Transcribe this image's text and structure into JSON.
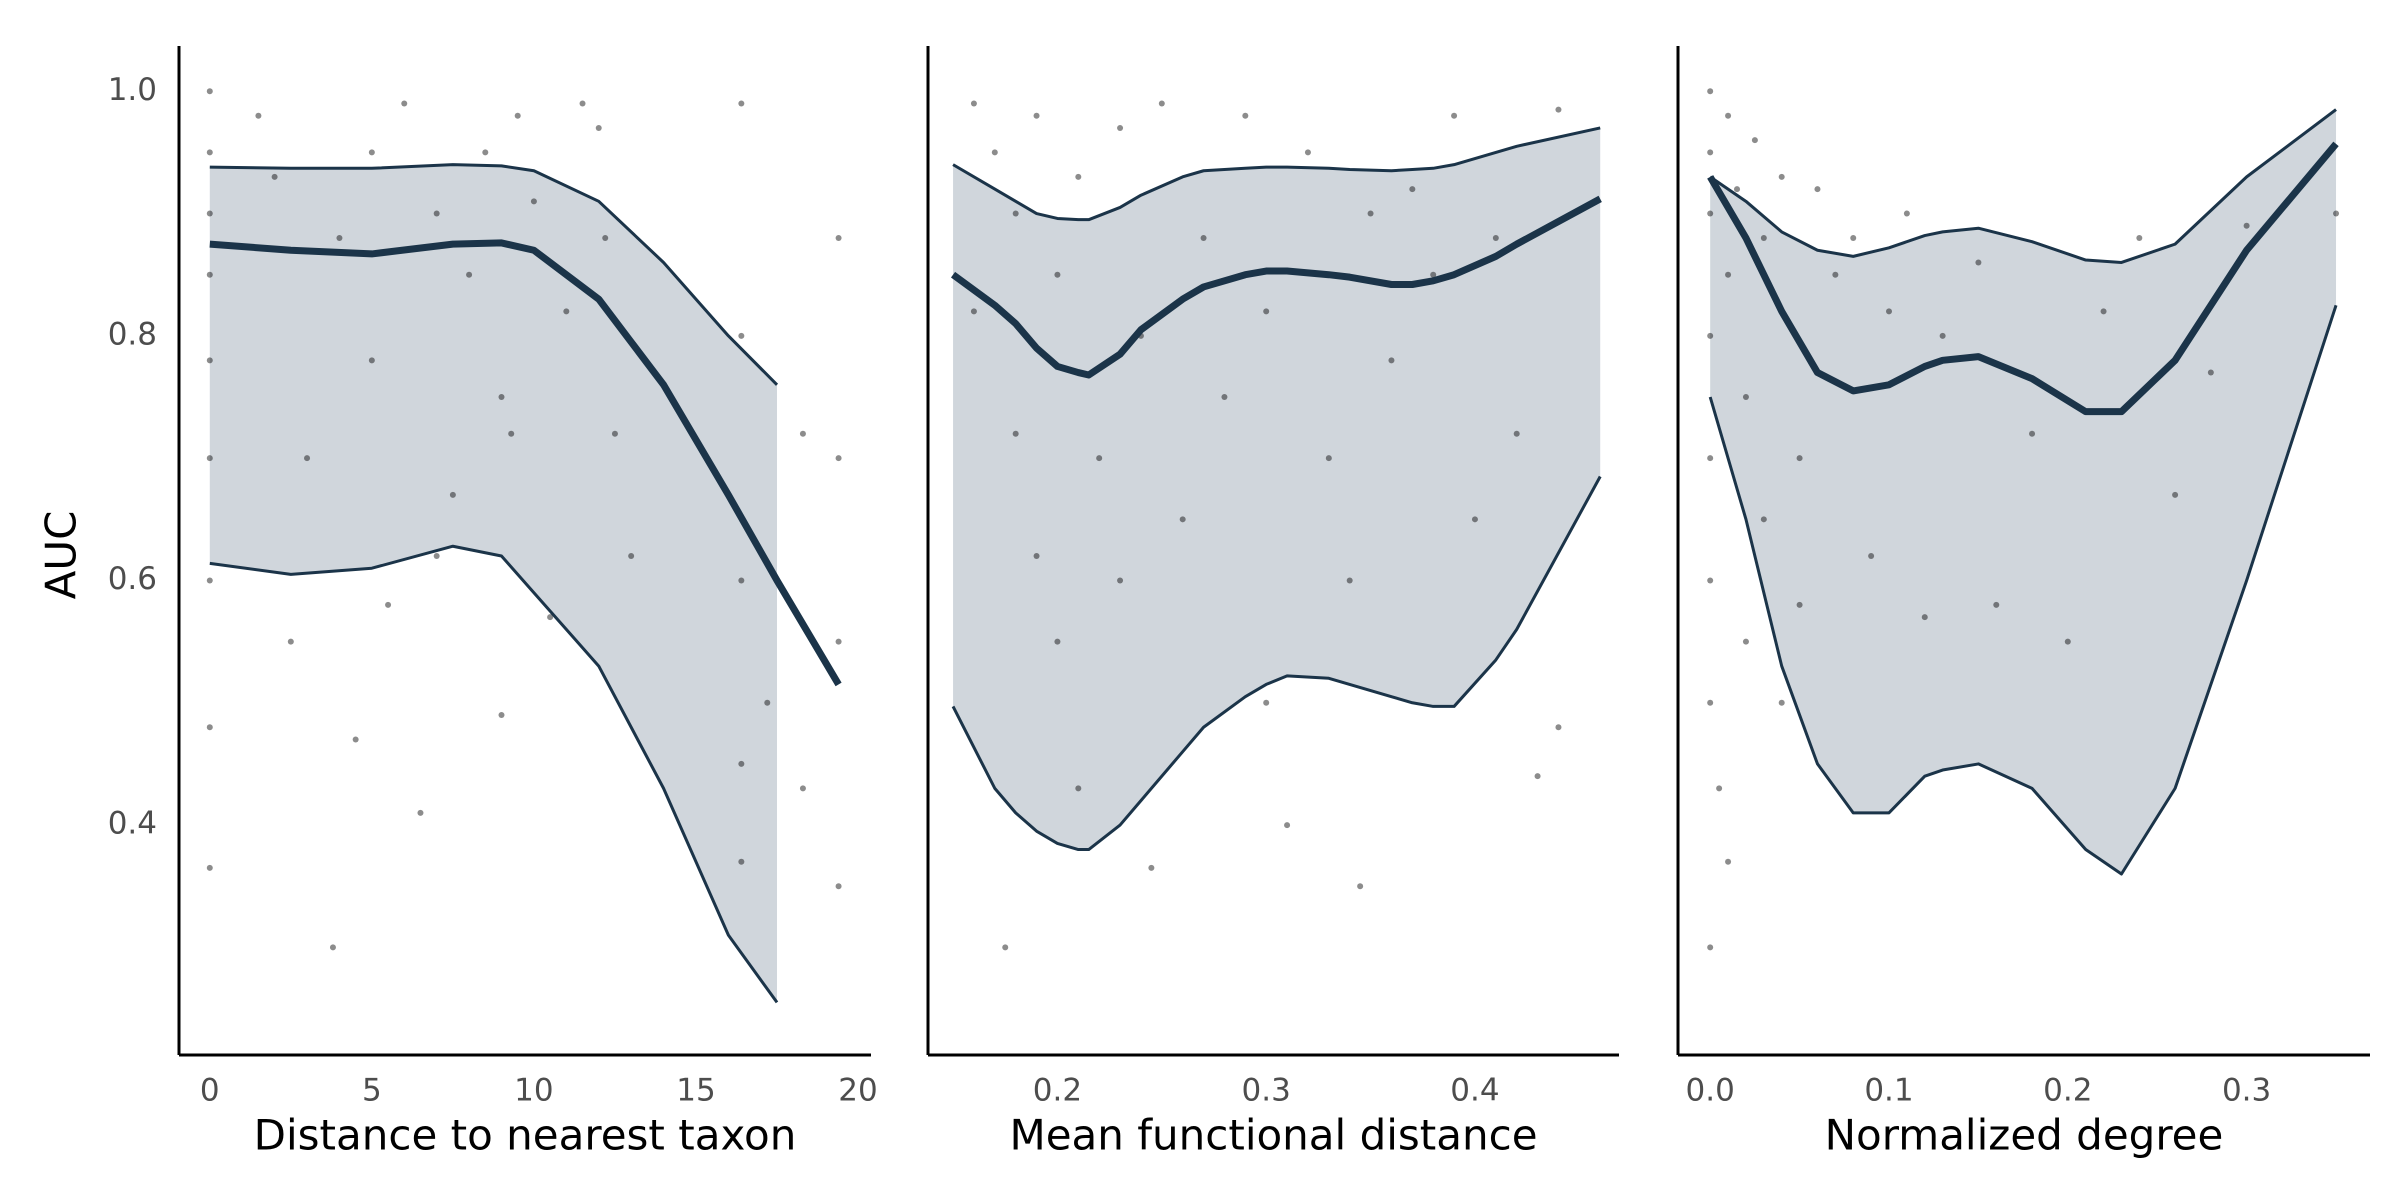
{
  "chart_data": [
    {
      "type": "scatter",
      "xlabel": "Distance to nearest taxon",
      "ylabel": "AUC",
      "xlim": [
        -0.95,
        20.4
      ],
      "ylim": [
        0.212,
        1.037
      ],
      "xticks": [
        0,
        5,
        10,
        15,
        20
      ],
      "yticks": [
        0.4,
        0.6,
        0.8,
        {
          "value": 1.0,
          "label": "1.0"
        }
      ],
      "point_color": "#000000",
      "fit_color": "#1b3449",
      "band_color": "#d0d6dc",
      "points": {
        "x": [
          0,
          0,
          0,
          0,
          0,
          0,
          0,
          0,
          0,
          1.5,
          2,
          3,
          3.8,
          4,
          4.5,
          5,
          5,
          5.5,
          6,
          6.5,
          7,
          7.5,
          8,
          8.5,
          9,
          9.3,
          9.5,
          10,
          10.5,
          11,
          11.5,
          12,
          12.2,
          12.5,
          13,
          16.4,
          16.4,
          16.4,
          16.4,
          16.4,
          17.2,
          18.3,
          18.3,
          19.4,
          19.4,
          19.4,
          19.4,
          2.5,
          7,
          9
        ],
        "y": [
          1.0,
          0.95,
          0.9,
          0.85,
          0.78,
          0.7,
          0.6,
          0.48,
          0.365,
          0.98,
          0.93,
          0.7,
          0.3,
          0.88,
          0.47,
          0.95,
          0.78,
          0.58,
          0.99,
          0.41,
          0.9,
          0.67,
          0.85,
          0.95,
          0.75,
          0.72,
          0.98,
          0.91,
          0.57,
          0.82,
          0.99,
          0.97,
          0.88,
          0.72,
          0.62,
          0.99,
          0.8,
          0.6,
          0.45,
          0.37,
          0.5,
          0.72,
          0.43,
          0.88,
          0.7,
          0.55,
          0.35,
          0.55,
          0.62,
          0.49
        ]
      },
      "fit": {
        "x": [
          0,
          2.5,
          5,
          7.5,
          9,
          10,
          12,
          14,
          16,
          17.5,
          19.4
        ],
        "y": [
          0.875,
          0.87,
          0.867,
          0.875,
          0.876,
          0.87,
          0.83,
          0.76,
          0.67,
          0.6,
          0.515
        ],
        "upper": [
          0.938,
          0.937,
          0.937,
          0.94,
          0.939,
          0.935,
          0.91,
          0.86,
          0.8,
          0.76,
          null
        ],
        "lower": [
          0.614,
          0.605,
          0.61,
          0.628,
          0.62,
          0.59,
          0.53,
          0.43,
          0.31,
          0.255,
          null
        ]
      }
    },
    {
      "type": "scatter",
      "xlabel": "Mean functional distance",
      "xlim": [
        0.138,
        0.469
      ],
      "ylim": [
        0.212,
        1.037
      ],
      "xticks": [
        0.2,
        0.3,
        0.4
      ],
      "point_color": "#000000",
      "fit_color": "#1b3449",
      "band_color": "#d0d6dc",
      "points": {
        "x": [
          0.16,
          0.17,
          0.18,
          0.18,
          0.175,
          0.19,
          0.19,
          0.2,
          0.2,
          0.21,
          0.21,
          0.22,
          0.23,
          0.23,
          0.24,
          0.245,
          0.25,
          0.26,
          0.27,
          0.28,
          0.29,
          0.3,
          0.3,
          0.31,
          0.32,
          0.33,
          0.34,
          0.345,
          0.35,
          0.36,
          0.37,
          0.38,
          0.39,
          0.4,
          0.41,
          0.42,
          0.43,
          0.44,
          0.44,
          0.16
        ],
        "y": [
          0.99,
          0.95,
          0.9,
          0.72,
          0.3,
          0.98,
          0.62,
          0.85,
          0.55,
          0.93,
          0.43,
          0.7,
          0.97,
          0.6,
          0.8,
          0.365,
          0.99,
          0.65,
          0.88,
          0.75,
          0.98,
          0.82,
          0.5,
          0.4,
          0.95,
          0.7,
          0.6,
          0.35,
          0.9,
          0.78,
          0.92,
          0.85,
          0.98,
          0.65,
          0.88,
          0.72,
          0.44,
          0.48,
          0.985,
          0.82
        ]
      },
      "fit": {
        "x": [
          0.15,
          0.17,
          0.18,
          0.19,
          0.2,
          0.21,
          0.215,
          0.23,
          0.24,
          0.26,
          0.27,
          0.29,
          0.3,
          0.31,
          0.33,
          0.34,
          0.36,
          0.37,
          0.38,
          0.39,
          0.41,
          0.42,
          0.46
        ],
        "y": [
          0.85,
          0.825,
          0.81,
          0.79,
          0.775,
          0.77,
          0.768,
          0.785,
          0.805,
          0.83,
          0.84,
          0.85,
          0.853,
          0.853,
          0.85,
          0.848,
          0.842,
          0.842,
          0.845,
          0.85,
          0.865,
          0.875,
          0.912
        ],
        "upper": [
          0.94,
          0.92,
          0.91,
          0.9,
          0.896,
          0.895,
          0.895,
          0.905,
          0.915,
          0.93,
          0.935,
          0.937,
          0.938,
          0.938,
          0.937,
          0.936,
          0.935,
          0.936,
          0.937,
          0.94,
          0.95,
          0.955,
          0.97
        ],
        "lower": [
          0.497,
          0.43,
          0.41,
          0.395,
          0.385,
          0.38,
          0.38,
          0.4,
          0.42,
          0.46,
          0.48,
          0.505,
          0.515,
          0.522,
          0.52,
          0.515,
          0.505,
          0.5,
          0.497,
          0.497,
          0.535,
          0.56,
          0.685
        ]
      }
    },
    {
      "type": "scatter",
      "xlabel": "Normalized degree",
      "xlim": [
        -0.018,
        0.369
      ],
      "ylim": [
        0.212,
        1.037
      ],
      "xticks": [
        {
          "value": 0,
          "label": "0.0"
        },
        0.1,
        0.2,
        0.3
      ],
      "point_color": "#000000",
      "fit_color": "#1b3449",
      "band_color": "#d0d6dc",
      "points": {
        "x": [
          0,
          0,
          0,
          0,
          0,
          0,
          0,
          0,
          0.005,
          0.01,
          0.01,
          0.01,
          0.015,
          0.02,
          0.02,
          0.025,
          0.03,
          0.03,
          0.04,
          0.04,
          0.05,
          0.05,
          0.06,
          0.07,
          0.08,
          0.09,
          0.1,
          0.11,
          0.12,
          0.13,
          0.15,
          0.16,
          0.18,
          0.2,
          0.22,
          0.24,
          0.26,
          0.28,
          0.3,
          0.35
        ],
        "y": [
          1.0,
          0.95,
          0.9,
          0.8,
          0.7,
          0.6,
          0.5,
          0.3,
          0.43,
          0.98,
          0.85,
          0.37,
          0.92,
          0.75,
          0.55,
          0.96,
          0.88,
          0.65,
          0.93,
          0.5,
          0.7,
          0.58,
          0.92,
          0.85,
          0.88,
          0.62,
          0.82,
          0.9,
          0.57,
          0.8,
          0.86,
          0.58,
          0.72,
          0.55,
          0.82,
          0.88,
          0.67,
          0.77,
          0.89,
          0.9
        ]
      },
      "fit": {
        "x": [
          0,
          0.02,
          0.04,
          0.06,
          0.08,
          0.1,
          0.12,
          0.13,
          0.15,
          0.18,
          0.21,
          0.23,
          0.26,
          0.3,
          0.35
        ],
        "y": [
          0.93,
          0.88,
          0.82,
          0.77,
          0.755,
          0.76,
          0.775,
          0.78,
          0.783,
          0.765,
          0.738,
          0.738,
          0.78,
          0.87,
          0.957
        ],
        "upper": [
          0.93,
          0.91,
          0.885,
          0.87,
          0.865,
          0.872,
          0.882,
          0.885,
          0.888,
          0.877,
          0.862,
          0.86,
          0.875,
          0.93,
          0.985
        ],
        "lower": [
          0.75,
          0.65,
          0.53,
          0.45,
          0.41,
          0.41,
          0.44,
          0.445,
          0.45,
          0.43,
          0.38,
          0.36,
          0.43,
          0.6,
          0.825
        ]
      }
    }
  ]
}
